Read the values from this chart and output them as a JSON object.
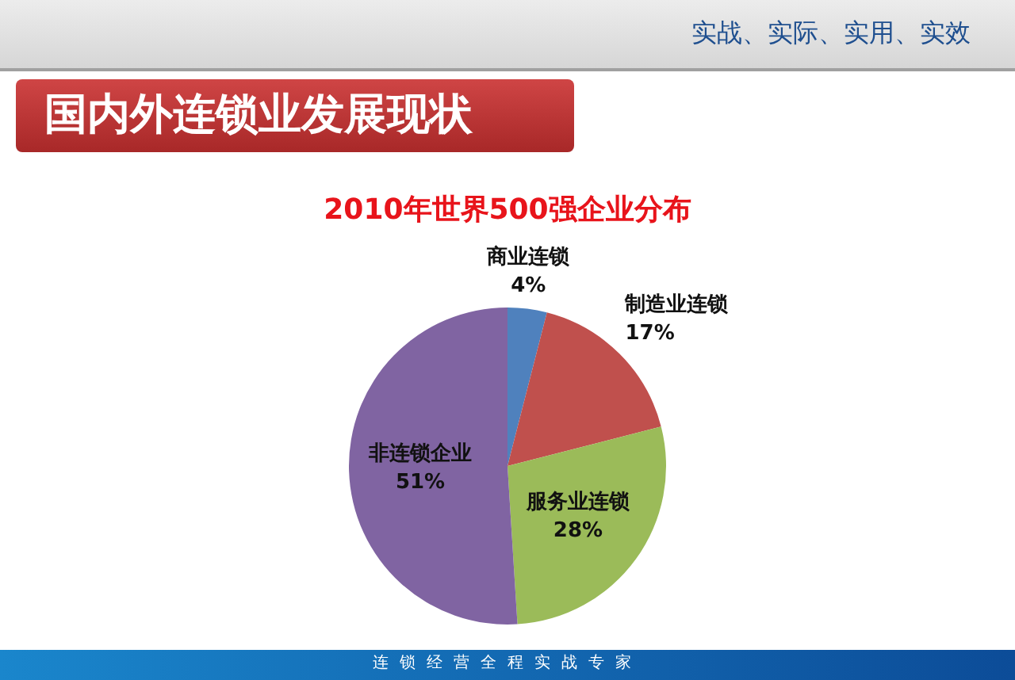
{
  "chart_data": {
    "type": "pie",
    "title": "2010年世界500强企业分布",
    "categories": [
      "商业连锁",
      "制造业连锁",
      "服务业连锁",
      "非连锁企业"
    ],
    "values": [
      4,
      17,
      28,
      51
    ],
    "colors": [
      "#4f81bd",
      "#c0504d",
      "#9bbb59",
      "#8064a2"
    ],
    "value_labels": [
      "4%",
      "17%",
      "28%",
      "51%"
    ],
    "annotations": [
      "国内外连锁业发展现状",
      "实战、实际、实用、实效",
      "连锁经营全程实战专家"
    ]
  }
}
